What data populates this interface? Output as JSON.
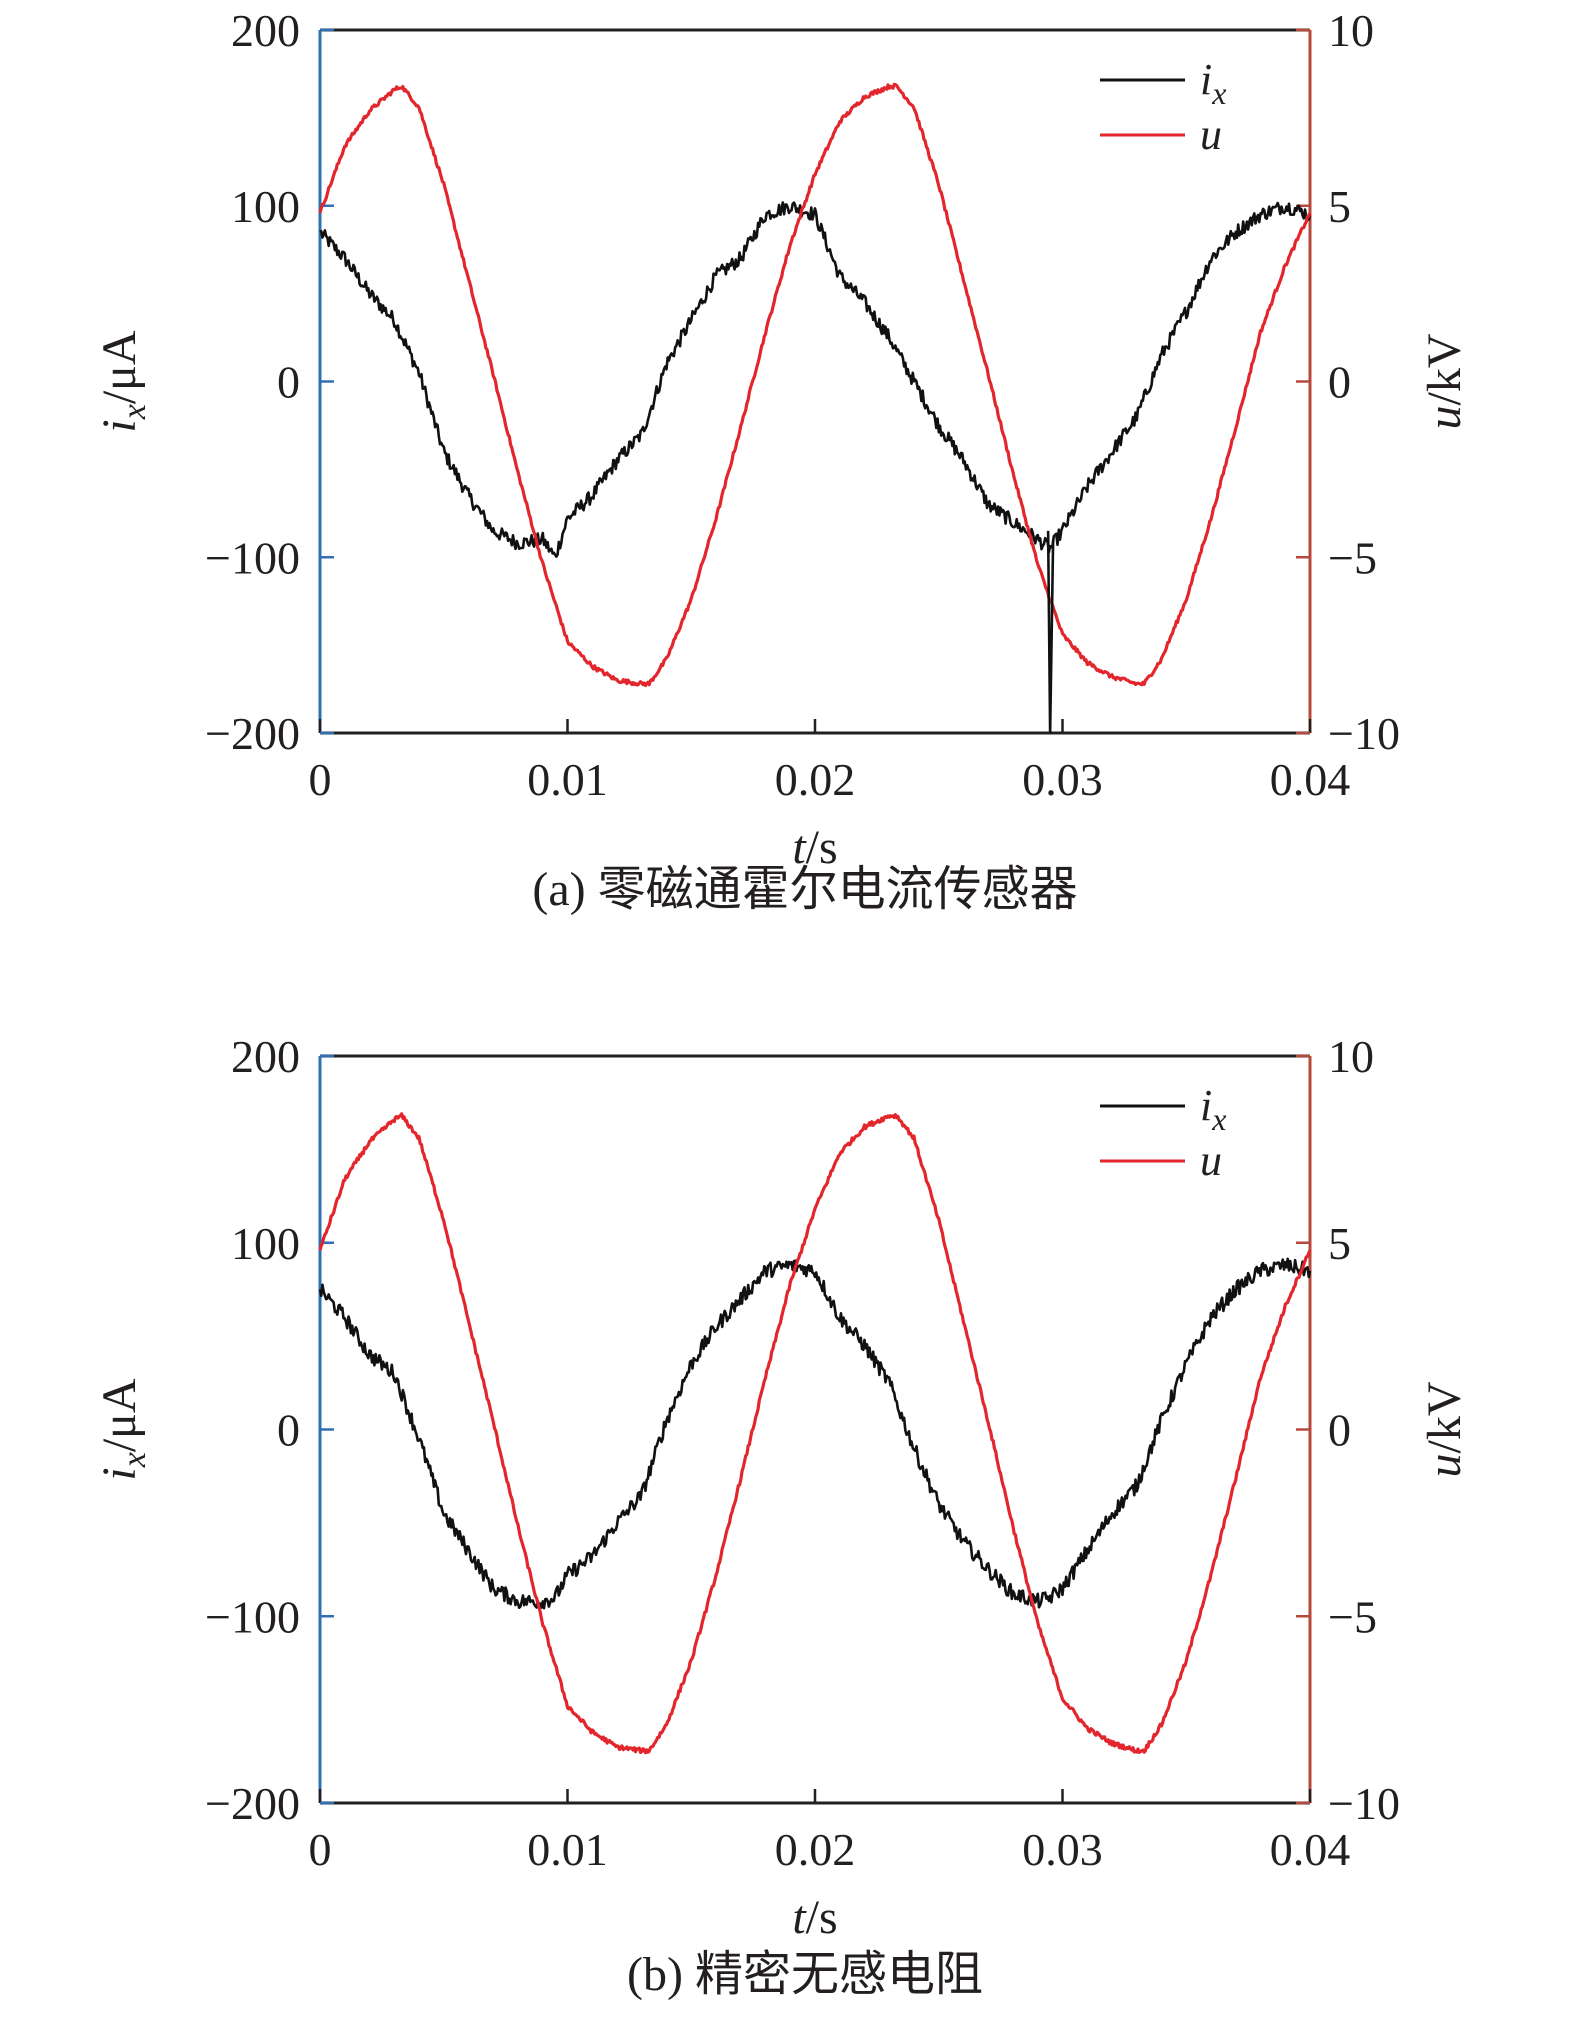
{
  "colors": {
    "ix": "#111111",
    "u": "#e3262c",
    "left_axis": "#2f6fb5",
    "right_axis": "#b54a3a",
    "frame": "#231f20"
  },
  "chart_data": [
    {
      "type": "line",
      "caption": "(a) 零磁通霍尔电流传感器",
      "xlabel": "t/s",
      "ylabel_left": "ix/μA",
      "ylabel_right": "u/kV",
      "xlim": [
        0,
        0.04
      ],
      "ylim_left": [
        -200,
        200
      ],
      "ylim_right": [
        -10,
        10
      ],
      "x_ticks": [
        "0",
        "0.01",
        "0.02",
        "0.03",
        "0.04"
      ],
      "yleft_ticks": [
        "200",
        "100",
        "0",
        "−100",
        "−200"
      ],
      "yright_ticks": [
        "10",
        "5",
        "0",
        "−5",
        "−10"
      ],
      "grid": false,
      "legend_position": "top-right",
      "legend": [
        "ix",
        "u"
      ],
      "series": [
        {
          "name": "ix",
          "axis": "left",
          "x": [
            0,
            0.001,
            0.002,
            0.003,
            0.004,
            0.005,
            0.006,
            0.007,
            0.008,
            0.009,
            0.0095,
            0.01,
            0.011,
            0.012,
            0.013,
            0.014,
            0.015,
            0.016,
            0.017,
            0.018,
            0.019,
            0.02,
            0.021,
            0.022,
            0.023,
            0.024,
            0.025,
            0.026,
            0.027,
            0.028,
            0.029,
            0.0295,
            0.03,
            0.031,
            0.032,
            0.033,
            0.034,
            0.035,
            0.036,
            0.037,
            0.038,
            0.039,
            0.04
          ],
          "y": [
            85,
            70,
            50,
            35,
            5,
            -40,
            -65,
            -85,
            -92,
            -90,
            -100,
            -78,
            -65,
            -45,
            -30,
            10,
            35,
            60,
            70,
            95,
            100,
            95,
            60,
            45,
            25,
            0,
            -25,
            -45,
            -70,
            -80,
            -90,
            -95,
            -85,
            -60,
            -40,
            -20,
            15,
            40,
            70,
            85,
            95,
            100,
            95
          ]
        },
        {
          "name": "u",
          "axis": "right",
          "x": [
            0,
            0.001,
            0.002,
            0.003,
            0.0033,
            0.004,
            0.005,
            0.006,
            0.007,
            0.008,
            0.009,
            0.01,
            0.011,
            0.012,
            0.013,
            0.0133,
            0.014,
            0.015,
            0.016,
            0.017,
            0.018,
            0.019,
            0.02,
            0.021,
            0.022,
            0.023,
            0.0233,
            0.024,
            0.025,
            0.026,
            0.027,
            0.028,
            0.029,
            0.03,
            0.031,
            0.032,
            0.033,
            0.0333,
            0.034,
            0.035,
            0.036,
            0.037,
            0.038,
            0.039,
            0.04
          ],
          "y": [
            4.8,
            6.7,
            7.7,
            8.3,
            8.4,
            7.8,
            5.6,
            2.9,
            0.2,
            -2.6,
            -5.2,
            -7.4,
            -8.1,
            -8.5,
            -8.6,
            -8.6,
            -7.9,
            -6.2,
            -3.9,
            -1.3,
            1.4,
            3.9,
            5.9,
            7.4,
            8.1,
            8.4,
            8.4,
            7.8,
            5.6,
            2.9,
            0.2,
            -2.6,
            -5.2,
            -7.2,
            -8.0,
            -8.4,
            -8.6,
            -8.6,
            -7.9,
            -6.2,
            -3.9,
            -1.3,
            1.4,
            3.3,
            4.8
          ]
        }
      ]
    },
    {
      "type": "line",
      "caption": "(b) 精密无感电阻",
      "xlabel": "t/s",
      "ylabel_left": "ix/μA",
      "ylabel_right": "u/kV",
      "xlim": [
        0,
        0.04
      ],
      "ylim_left": [
        -200,
        200
      ],
      "ylim_right": [
        -10,
        10
      ],
      "x_ticks": [
        "0",
        "0.01",
        "0.02",
        "0.03",
        "0.04"
      ],
      "yleft_ticks": [
        "200",
        "100",
        "0",
        "−100",
        "−200"
      ],
      "yright_ticks": [
        "10",
        "5",
        "0",
        "−5",
        "−10"
      ],
      "grid": false,
      "legend_position": "top-right",
      "legend": [
        "ix",
        "u"
      ],
      "series": [
        {
          "name": "ix",
          "axis": "left",
          "x": [
            0,
            0.001,
            0.002,
            0.003,
            0.004,
            0.005,
            0.006,
            0.007,
            0.008,
            0.009,
            0.0095,
            0.01,
            0.011,
            0.012,
            0.013,
            0.014,
            0.015,
            0.016,
            0.017,
            0.018,
            0.019,
            0.02,
            0.021,
            0.022,
            0.023,
            0.024,
            0.025,
            0.026,
            0.027,
            0.028,
            0.029,
            0.0295,
            0.03,
            0.031,
            0.032,
            0.033,
            0.034,
            0.035,
            0.036,
            0.037,
            0.038,
            0.039,
            0.04
          ],
          "y": [
            75,
            60,
            40,
            30,
            -5,
            -45,
            -65,
            -85,
            -92,
            -92,
            -90,
            -78,
            -68,
            -50,
            -35,
            5,
            35,
            55,
            70,
            85,
            88,
            85,
            60,
            45,
            25,
            -10,
            -40,
            -60,
            -75,
            -88,
            -92,
            -90,
            -85,
            -65,
            -45,
            -30,
            5,
            35,
            60,
            75,
            85,
            88,
            85
          ]
        },
        {
          "name": "u",
          "axis": "right",
          "x": [
            0,
            0.001,
            0.002,
            0.003,
            0.0033,
            0.004,
            0.005,
            0.006,
            0.007,
            0.008,
            0.009,
            0.01,
            0.011,
            0.012,
            0.013,
            0.0133,
            0.014,
            0.015,
            0.016,
            0.017,
            0.018,
            0.019,
            0.02,
            0.021,
            0.022,
            0.023,
            0.0233,
            0.024,
            0.025,
            0.026,
            0.027,
            0.028,
            0.029,
            0.03,
            0.031,
            0.032,
            0.033,
            0.0333,
            0.034,
            0.035,
            0.036,
            0.037,
            0.038,
            0.039,
            0.04
          ],
          "y": [
            4.8,
            6.7,
            7.7,
            8.3,
            8.4,
            7.8,
            5.6,
            2.9,
            0.2,
            -2.6,
            -5.2,
            -7.4,
            -8.1,
            -8.5,
            -8.6,
            -8.6,
            -7.9,
            -6.2,
            -3.9,
            -1.3,
            1.4,
            3.9,
            5.9,
            7.4,
            8.1,
            8.4,
            8.4,
            7.8,
            5.6,
            2.9,
            0.2,
            -2.6,
            -5.2,
            -7.2,
            -8.0,
            -8.4,
            -8.6,
            -8.6,
            -7.9,
            -6.2,
            -3.9,
            -1.3,
            1.4,
            3.3,
            4.8
          ]
        }
      ]
    }
  ]
}
